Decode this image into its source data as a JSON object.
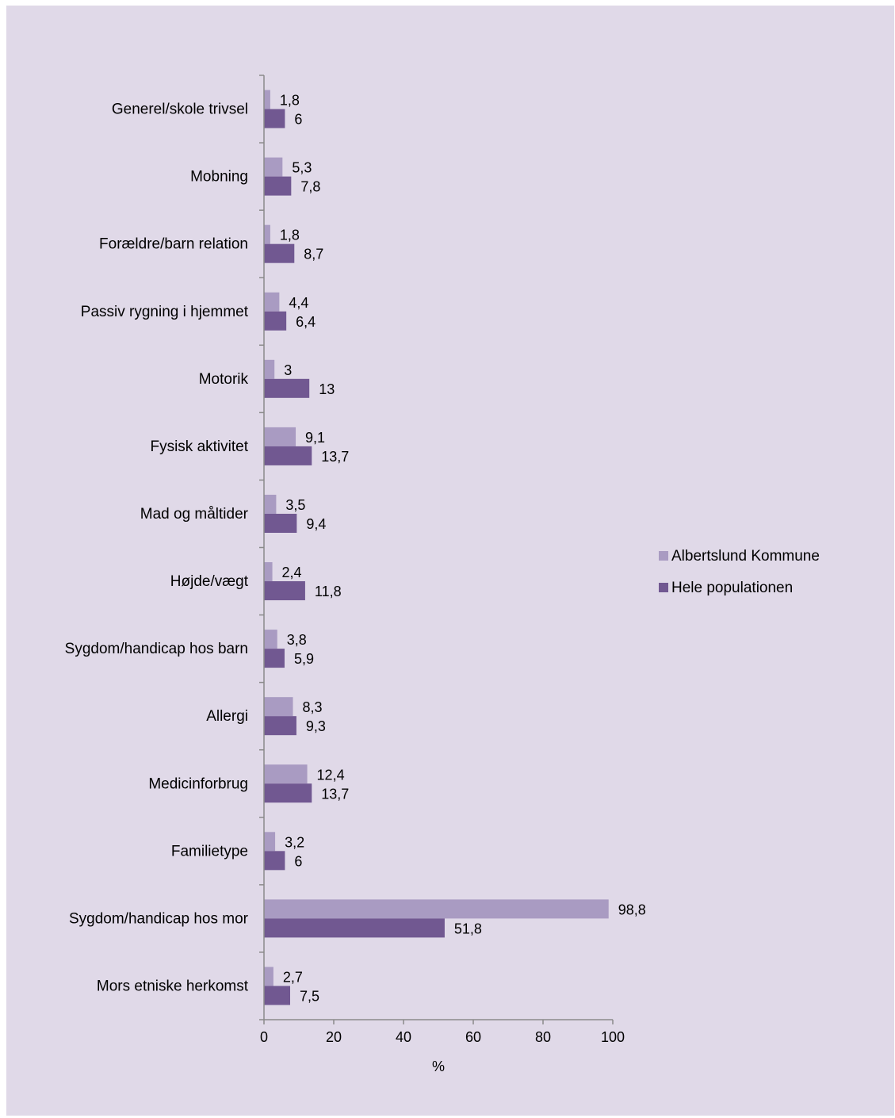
{
  "chart_data": {
    "type": "bar",
    "orientation": "horizontal",
    "categories": [
      "Generel/skole trivsel",
      "Mobning",
      "Forældre/barn relation",
      "Passiv rygning i hjemmet",
      "Motorik",
      "Fysisk aktivitet",
      "Mad og måltider",
      "Højde/vægt",
      "Sygdom/handicap hos barn",
      "Allergi",
      "Medicinforbrug",
      "Familietype",
      "Sygdom/handicap hos mor",
      "Mors etniske herkomst"
    ],
    "series": [
      {
        "name": "Albertslund Kommune",
        "color": "#a99bc2",
        "values": [
          1.8,
          5.3,
          1.8,
          4.4,
          3,
          9.1,
          3.5,
          2.4,
          3.8,
          8.3,
          12.4,
          3.2,
          98.8,
          2.7
        ],
        "labels": [
          "1,8",
          "5,3",
          "1,8",
          "4,4",
          "3",
          "9,1",
          "3,5",
          "2,4",
          "3,8",
          "8,3",
          "12,4",
          "3,2",
          "98,8",
          "2,7"
        ]
      },
      {
        "name": "Hele populationen",
        "color": "#715891",
        "values": [
          6,
          7.8,
          8.7,
          6.4,
          13,
          13.7,
          9.4,
          11.8,
          5.9,
          9.3,
          13.7,
          6,
          51.8,
          7.5
        ],
        "labels": [
          "6",
          "7,8",
          "8,7",
          "6,4",
          "13",
          "13,7",
          "9,4",
          "11,8",
          "5,9",
          "9,3",
          "13,7",
          "6",
          "51,8",
          "7,5"
        ]
      }
    ],
    "xlabel": "%",
    "xlim": [
      0,
      100
    ],
    "xticks": [
      0,
      20,
      40,
      60,
      80,
      100
    ],
    "grid": false,
    "legend": "right"
  }
}
